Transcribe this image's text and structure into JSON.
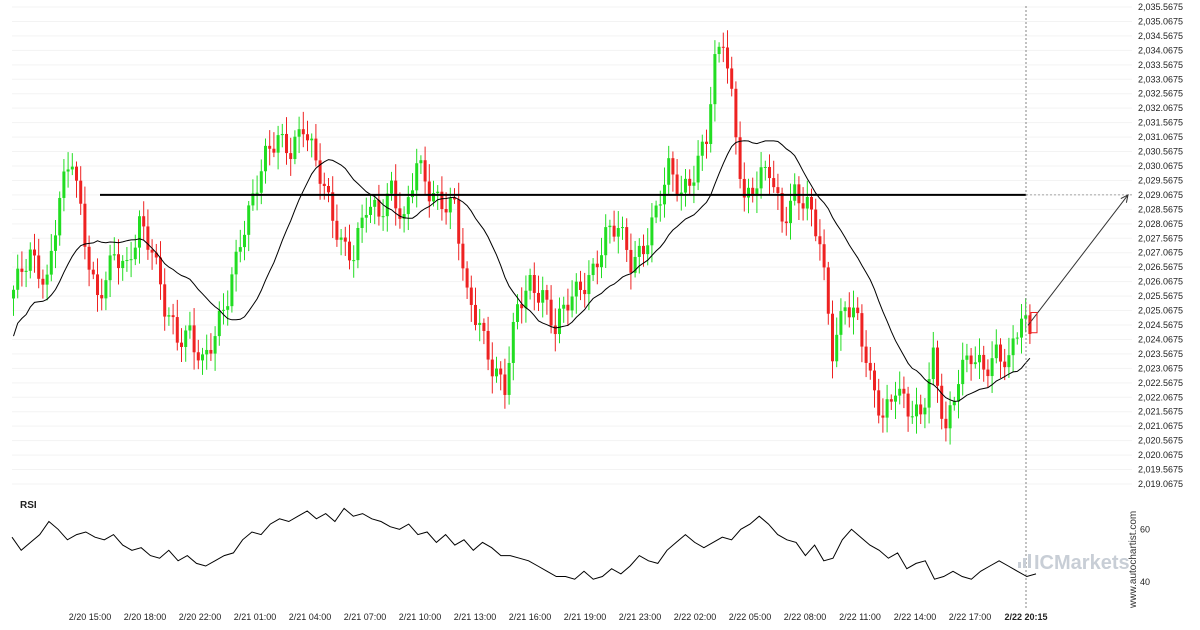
{
  "brand": {
    "watermark": "www.autochartist.com",
    "logo_prefix": "IC",
    "logo_text": "Markets"
  },
  "colors": {
    "bull": "#22dd22",
    "bear": "#ee2222",
    "line": "#000000",
    "grid": "#f3f3f3",
    "projection": "#333333"
  },
  "chart_data": [
    {
      "type": "candlestick",
      "name": "price",
      "y_ticks": [
        "2,019.0675",
        "2,019.5675",
        "2,020.0675",
        "2,020.5675",
        "2,021.0675",
        "2,021.5675",
        "2,022.0675",
        "2,022.5675",
        "2,023.0675",
        "2,023.5675",
        "2,024.0675",
        "2,024.5675",
        "2,025.0675",
        "2,025.5675",
        "2,026.0675",
        "2,026.5675",
        "2,027.0675",
        "2,027.5675",
        "2,028.0675",
        "2,028.5675",
        "2,029.0675",
        "2,029.5675",
        "2,030.0675",
        "2,030.5675",
        "2,031.0675",
        "2,031.5675",
        "2,032.0675",
        "2,032.5675",
        "2,033.0675",
        "2,033.5675",
        "2,034.0675",
        "2,034.5675",
        "2,035.0675",
        "2,035.5675"
      ],
      "ylim": [
        2019.0675,
        2035.5675
      ],
      "x_labels": [
        "2/20 15:00",
        "2/20 18:00",
        "2/20 22:00",
        "2/21 01:00",
        "2/21 04:00",
        "2/21 07:00",
        "2/21 10:00",
        "2/21 13:00",
        "2/21 16:00",
        "2/21 19:00",
        "2/21 23:00",
        "2/22 02:00",
        "2/22 05:00",
        "2/22 08:00",
        "2/22 11:00",
        "2/22 14:00",
        "2/22 17:00",
        "2/22 20:15"
      ],
      "current_time_label": "2/22 20:15",
      "support_level": 2029.0675,
      "projection_target": 2029.0675,
      "moving_average_shown": true,
      "price_path": [
        [
          0,
          2025.6
        ],
        [
          4,
          2027.0
        ],
        [
          8,
          2026.2
        ],
        [
          11,
          2028.9
        ],
        [
          14,
          2030.2
        ],
        [
          17,
          2027.6
        ],
        [
          20,
          2025.6
        ],
        [
          24,
          2026.8
        ],
        [
          27,
          2026.4
        ],
        [
          30,
          2028.3
        ],
        [
          33,
          2027.3
        ],
        [
          36,
          2025.0
        ],
        [
          39,
          2024.0
        ],
        [
          42,
          2024.5
        ],
        [
          45,
          2023.3
        ],
        [
          48,
          2024.0
        ],
        [
          51,
          2025.5
        ],
        [
          54,
          2027.7
        ],
        [
          57,
          2029.0
        ],
        [
          60,
          2030.2
        ],
        [
          63,
          2031.0
        ],
        [
          66,
          2030.8
        ],
        [
          69,
          2031.5
        ],
        [
          72,
          2030.0
        ],
        [
          75,
          2028.8
        ],
        [
          78,
          2027.6
        ],
        [
          81,
          2027.0
        ],
        [
          84,
          2028.5
        ],
        [
          87,
          2028.4
        ],
        [
          90,
          2029.5
        ],
        [
          93,
          2028.1
        ],
        [
          96,
          2030.0
        ],
        [
          99,
          2029.2
        ],
        [
          102,
          2029.0
        ],
        [
          105,
          2028.7
        ],
        [
          108,
          2025.3
        ],
        [
          111,
          2024.6
        ],
        [
          114,
          2023.3
        ],
        [
          117,
          2022.4
        ],
        [
          120,
          2025.0
        ],
        [
          123,
          2026.0
        ],
        [
          126,
          2025.8
        ],
        [
          129,
          2024.4
        ],
        [
          132,
          2025.2
        ],
        [
          135,
          2025.9
        ],
        [
          138,
          2026.6
        ],
        [
          141,
          2027.6
        ],
        [
          144,
          2027.8
        ],
        [
          147,
          2026.8
        ],
        [
          150,
          2027.4
        ],
        [
          153,
          2028.4
        ],
        [
          156,
          2029.8
        ],
        [
          159,
          2029.2
        ],
        [
          162,
          2030.0
        ],
        [
          165,
          2031.0
        ],
        [
          167,
          2033.4
        ],
        [
          169,
          2034.4
        ],
        [
          171,
          2032.5
        ],
        [
          174,
          2029.0
        ],
        [
          177,
          2029.4
        ],
        [
          180,
          2029.8
        ],
        [
          183,
          2028.3
        ],
        [
          186,
          2029.3
        ],
        [
          189,
          2028.6
        ],
        [
          192,
          2027.3
        ],
        [
          195,
          2023.8
        ],
        [
          198,
          2025.5
        ],
        [
          201,
          2024.6
        ],
        [
          204,
          2022.5
        ],
        [
          207,
          2021.5
        ],
        [
          210,
          2022.6
        ],
        [
          213,
          2021.5
        ],
        [
          216,
          2021.2
        ],
        [
          219,
          2023.6
        ],
        [
          222,
          2021.0
        ],
        [
          225,
          2022.6
        ],
        [
          228,
          2023.4
        ],
        [
          231,
          2023.2
        ],
        [
          234,
          2023.7
        ],
        [
          237,
          2023.1
        ],
        [
          240,
          2024.8
        ],
        [
          242,
          2024.3
        ]
      ]
    },
    {
      "type": "line",
      "name": "RSI",
      "title": "RSI",
      "y_ticks": [
        "40",
        "60"
      ],
      "ylim": [
        30,
        75
      ],
      "values": [
        57,
        52,
        55,
        58,
        63,
        60,
        56,
        58,
        59,
        57,
        56,
        58,
        54,
        52,
        53,
        50,
        49,
        52,
        48,
        50,
        47,
        46,
        48,
        50,
        51,
        56,
        59,
        58,
        62,
        64,
        63,
        65,
        67,
        64,
        66,
        63,
        68,
        65,
        66,
        64,
        63,
        61,
        60,
        62,
        58,
        59,
        55,
        58,
        54,
        56,
        52,
        55,
        53,
        50,
        50,
        49,
        48,
        46,
        44,
        42,
        42,
        41,
        44,
        41,
        42,
        45,
        43,
        46,
        50,
        48,
        47,
        52,
        55,
        58,
        55,
        53,
        55,
        57,
        56,
        60,
        62,
        65,
        62,
        58,
        56,
        55,
        50,
        54,
        48,
        49,
        56,
        60,
        57,
        54,
        52,
        49,
        51,
        45,
        47,
        48,
        41,
        42,
        44,
        42,
        41,
        44,
        46,
        48,
        46,
        44,
        42,
        43
      ]
    }
  ]
}
